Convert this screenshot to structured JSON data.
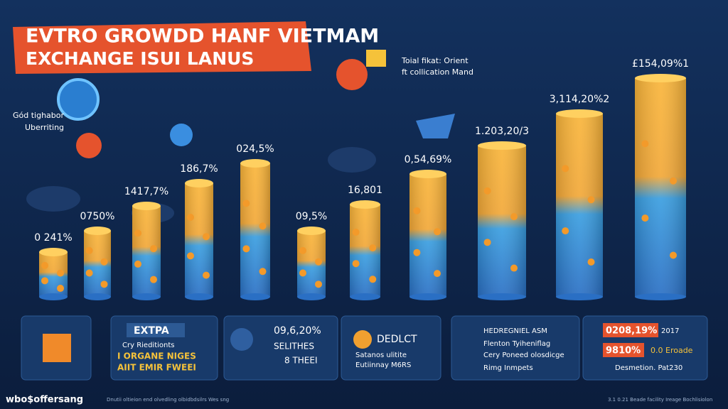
{
  "header": {
    "title_lines": [
      "EVTRO GROWDD HANF VIETMAM",
      "EXCHANGE ISUI LANUS"
    ]
  },
  "side_note": [
    "Gód tighabor",
    "Uberriting"
  ],
  "callout": [
    "Toial fikat: Orient",
    "ft collication Mand"
  ],
  "bars": [
    {
      "label": "0 241%"
    },
    {
      "label": "0750%"
    },
    {
      "label": "1417,7%"
    },
    {
      "label": "186,7%"
    },
    {
      "label": "024,5%"
    },
    {
      "label": "09,5%"
    },
    {
      "label": "16,801"
    },
    {
      "label": "0,54,69%"
    },
    {
      "label": "1.203,20/3"
    },
    {
      "label": "3,114,20%2"
    },
    {
      "label": "£154,09%1"
    }
  ],
  "panels": {
    "p1": {
      "title": "EXTPA",
      "lines": [
        "Cry Rieditionts",
        "I ORGANE NIGES",
        "AIIT EMIR FWEEI"
      ]
    },
    "p2": {
      "lines": [
        "09,6,20%",
        "SELITHES",
        "8 THEEI"
      ]
    },
    "p3": {
      "title": "DEDLCT",
      "lines": [
        "Satanos ulitite",
        "Eutiinnay M6RS"
      ]
    },
    "p4": {
      "lines": [
        "HEDREGNIEL ASM",
        "Flenton Tyiheniflag",
        "Cery Poneed olosdicge",
        "Rimg Inmpets"
      ]
    },
    "p5": {
      "lines": [
        "0208,19%",
        "2017",
        "9810%",
        "0.0 Eroade",
        "Desmetion. Pat230"
      ]
    }
  },
  "footer": {
    "brand": "wbo$offersang",
    "left": "Dnutii oltieion end olvedling olbidbdsilrs Wes sng",
    "right": "3.1 0.21 Beade facility Ireage Bochlisiolon"
  }
}
